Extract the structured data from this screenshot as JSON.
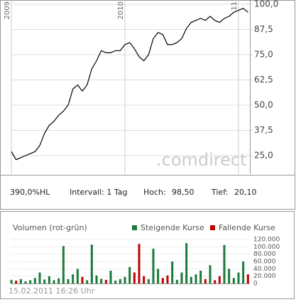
{
  "chart_data": [
    {
      "type": "line",
      "categories": [
        "2009",
        null,
        null,
        null,
        null,
        null,
        null,
        null,
        null,
        null,
        null,
        null,
        null,
        null,
        null,
        null,
        null,
        null,
        null,
        null,
        null,
        null,
        null,
        null,
        "2010",
        null,
        null,
        null,
        null,
        null,
        null,
        null,
        null,
        null,
        null,
        null,
        null,
        null,
        null,
        null,
        null,
        null,
        null,
        null,
        null,
        null,
        null,
        null,
        "11",
        null,
        null
      ],
      "series": [
        {
          "color": "#000000",
          "values": [
            27,
            23,
            24,
            25,
            26,
            27,
            30,
            36,
            40,
            42,
            45,
            47,
            50,
            58,
            60,
            57,
            60,
            68,
            72,
            77,
            76,
            76,
            77,
            77,
            80,
            81,
            78,
            74,
            72,
            75,
            83,
            86,
            85,
            80,
            80,
            81,
            83,
            88,
            91,
            92,
            93,
            92,
            94,
            92,
            91,
            93,
            94,
            96,
            97,
            98,
            96
          ]
        }
      ],
      "ylim": [
        15.85,
        102.1
      ],
      "yticks": [
        {
          "value": 25,
          "label": "25,0"
        },
        {
          "value": 37.5,
          "label": "37,5"
        },
        {
          "value": 50,
          "label": "50,0"
        },
        {
          "value": 62.5,
          "label": "62,5"
        },
        {
          "value": 75,
          "label": "75,0"
        },
        {
          "value": 87.5,
          "label": "87,5"
        },
        {
          "value": 100,
          "label": "100,0"
        }
      ],
      "grid": true,
      "watermark": ".comdirect"
    },
    {
      "type": "bar",
      "title": "Volumen (rot-grün)",
      "series": [
        {
          "name": "Steigende Kurse",
          "color": "#1a7a3a",
          "values": [
            10000,
            null,
            12000,
            6000,
            9000,
            15000,
            30000,
            11000,
            20000,
            9000,
            14000,
            102000,
            12000,
            25000,
            40000,
            null,
            9000,
            106000,
            22000,
            13000,
            null,
            35000,
            8000,
            12000,
            18000,
            45000,
            null,
            null,
            null,
            12000,
            95000,
            40000,
            null,
            null,
            60000,
            10000,
            30000,
            110000,
            18000,
            25000,
            35000,
            null,
            50000,
            null,
            null,
            105000,
            40000,
            15000,
            30000,
            60000,
            null
          ]
        },
        {
          "name": "Fallende Kurse",
          "color": "#c00000",
          "values": [
            null,
            8000,
            null,
            null,
            null,
            null,
            null,
            null,
            null,
            null,
            null,
            null,
            null,
            null,
            null,
            18000,
            null,
            null,
            null,
            null,
            10000,
            null,
            null,
            null,
            null,
            null,
            30000,
            108000,
            20000,
            null,
            null,
            null,
            15000,
            22000,
            null,
            null,
            null,
            null,
            null,
            null,
            null,
            12000,
            null,
            9000,
            20000,
            null,
            null,
            null,
            null,
            null,
            25000
          ]
        }
      ],
      "ylim": [
        0,
        120000
      ],
      "yticks": [
        0,
        {
          "value": 20000,
          "label": "20.000"
        },
        {
          "value": 40000,
          "label": "40.000"
        },
        {
          "value": 60000,
          "label": "60.000"
        },
        {
          "value": 80000,
          "label": "80.000"
        },
        {
          "value": 100000,
          "label": "100.000"
        },
        {
          "value": 120000,
          "label": "120.000"
        }
      ],
      "grid": true
    }
  ],
  "info_bar": {
    "range": "390,0%HL",
    "interval": "Intervall: 1 Tag",
    "high_label": "Hoch:",
    "high_value": "98,50",
    "low_label": "Tief:",
    "low_value": "20,10"
  },
  "timestamp": "15.02.2011 16:26 Uhr"
}
